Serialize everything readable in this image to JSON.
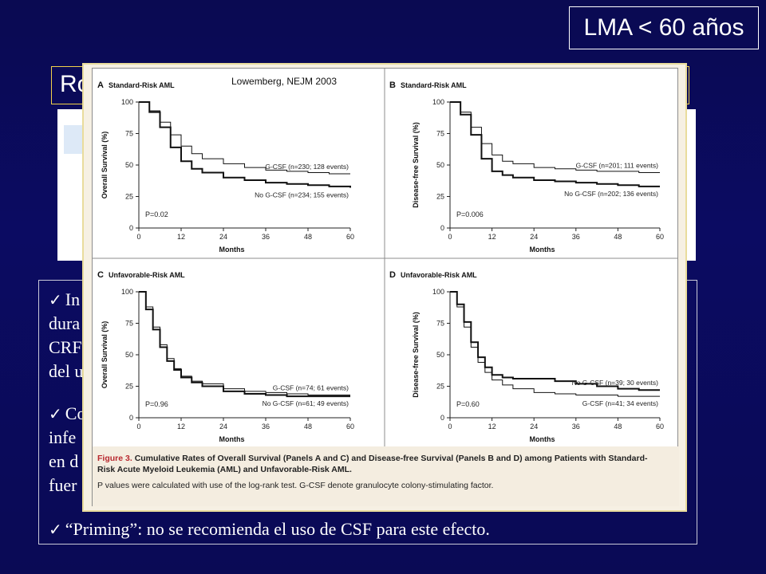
{
  "slide": {
    "badge": "LMA < 60 años",
    "title_visible": "Ro",
    "bullets": [
      {
        "lines": [
          "In",
          "dura",
          "CRF",
          "del u"
        ]
      },
      {
        "lines": [
          "Co",
          "infe",
          "en d",
          "fuer"
        ]
      },
      {
        "lines": [
          "“Priming”: no se recomienda el uso de CSF para este efecto."
        ]
      }
    ]
  },
  "figure": {
    "reference": "Lowemberg, NEJM 2003",
    "caption": {
      "figure_label": "Figure 3.",
      "title_part1": "Cumulative Rates of Overall Survival (Panels A and C) and Disease-free Survival (Panels B and D) among Patients with Standard-",
      "title_part2": "Risk Acute Myeloid Leukemia (AML) and Unfavorable-Risk AML.",
      "note": "P values were calculated with use of the log-rank test. G-CSF denote granulocyte colony-stimulating factor."
    }
  },
  "chart_data": [
    {
      "type": "line",
      "panel": "A",
      "title": "Standard-Risk AML",
      "xlabel": "Months",
      "ylabel": "Overall Survival (%)",
      "xticks": [
        0,
        12,
        24,
        36,
        48,
        60
      ],
      "yticks": [
        0,
        25,
        50,
        75,
        100
      ],
      "xlim": [
        0,
        60
      ],
      "ylim": [
        0,
        100
      ],
      "pvalue": "P=0.02",
      "series": [
        {
          "name": "G-CSF (n=230; 128 events)",
          "x": [
            0,
            3,
            6,
            9,
            12,
            15,
            18,
            24,
            30,
            36,
            42,
            48,
            54,
            60
          ],
          "y": [
            100,
            93,
            84,
            74,
            65,
            59,
            55,
            51,
            48,
            46,
            45,
            44,
            43,
            43
          ],
          "style": "thin"
        },
        {
          "name": "No G-CSF (n=234; 155 events)",
          "x": [
            0,
            3,
            6,
            9,
            12,
            15,
            18,
            24,
            30,
            36,
            42,
            48,
            54,
            60
          ],
          "y": [
            100,
            92,
            80,
            64,
            53,
            47,
            44,
            40,
            38,
            36,
            35,
            34,
            33,
            32
          ],
          "style": "thick"
        }
      ]
    },
    {
      "type": "line",
      "panel": "B",
      "title": "Standard-Risk AML",
      "xlabel": "Months",
      "ylabel": "Disease-free Survival (%)",
      "xticks": [
        0,
        12,
        24,
        36,
        48,
        60
      ],
      "yticks": [
        0,
        25,
        50,
        75,
        100
      ],
      "xlim": [
        0,
        60
      ],
      "ylim": [
        0,
        100
      ],
      "pvalue": "P=0.006",
      "series": [
        {
          "name": "G-CSF (n=201; 111 events)",
          "x": [
            0,
            3,
            6,
            9,
            12,
            15,
            18,
            24,
            30,
            36,
            42,
            48,
            54,
            60
          ],
          "y": [
            100,
            92,
            80,
            67,
            58,
            53,
            51,
            48,
            47,
            46,
            45,
            45,
            44,
            44
          ],
          "style": "thin"
        },
        {
          "name": "No G-CSF (n=202; 136 events)",
          "x": [
            0,
            3,
            6,
            9,
            12,
            15,
            18,
            24,
            30,
            36,
            42,
            48,
            54,
            60
          ],
          "y": [
            100,
            90,
            74,
            55,
            45,
            42,
            40,
            38,
            37,
            36,
            35,
            34,
            33,
            33
          ],
          "style": "thick"
        }
      ]
    },
    {
      "type": "line",
      "panel": "C",
      "title": "Unfavorable-Risk AML",
      "xlabel": "Months",
      "ylabel": "Overall Survival (%)",
      "xticks": [
        0,
        12,
        24,
        36,
        48,
        60
      ],
      "yticks": [
        0,
        25,
        50,
        75,
        100
      ],
      "xlim": [
        0,
        60
      ],
      "ylim": [
        0,
        100
      ],
      "pvalue": "P=0.96",
      "series": [
        {
          "name": "G-CSF (n=74; 61 events)",
          "x": [
            0,
            2,
            4,
            6,
            8,
            10,
            12,
            15,
            18,
            24,
            30,
            36,
            42,
            48,
            54,
            60
          ],
          "y": [
            100,
            88,
            72,
            58,
            47,
            39,
            33,
            29,
            27,
            23,
            21,
            20,
            19,
            18,
            18,
            18
          ],
          "style": "thin"
        },
        {
          "name": "No G-CSF (n=61; 49 events)",
          "x": [
            0,
            2,
            4,
            6,
            8,
            10,
            12,
            15,
            18,
            24,
            30,
            36,
            42,
            48,
            54,
            60
          ],
          "y": [
            100,
            86,
            70,
            56,
            45,
            38,
            32,
            28,
            25,
            21,
            19,
            18,
            17,
            17,
            17,
            17
          ],
          "style": "thick"
        }
      ]
    },
    {
      "type": "line",
      "panel": "D",
      "title": "Unfavorable-Risk AML",
      "xlabel": "Months",
      "ylabel": "Disease-free Survival (%)",
      "xticks": [
        0,
        12,
        24,
        36,
        48,
        60
      ],
      "yticks": [
        0,
        25,
        50,
        75,
        100
      ],
      "xlim": [
        0,
        60
      ],
      "ylim": [
        0,
        100
      ],
      "pvalue": "P=0.60",
      "series": [
        {
          "name": "No G-CSF (n=39; 30 events)",
          "x": [
            0,
            2,
            4,
            6,
            8,
            10,
            12,
            15,
            18,
            24,
            30,
            36,
            42,
            48,
            54,
            60
          ],
          "y": [
            100,
            90,
            76,
            60,
            48,
            40,
            34,
            32,
            31,
            31,
            29,
            27,
            25,
            23,
            22,
            22
          ],
          "style": "thick"
        },
        {
          "name": "G-CSF (n=41; 34 events)",
          "x": [
            0,
            2,
            4,
            6,
            8,
            10,
            12,
            15,
            18,
            24,
            30,
            36,
            42,
            48,
            54,
            60
          ],
          "y": [
            100,
            88,
            72,
            56,
            44,
            36,
            30,
            26,
            23,
            20,
            19,
            18,
            18,
            17,
            17,
            17
          ],
          "style": "thin"
        }
      ]
    }
  ]
}
